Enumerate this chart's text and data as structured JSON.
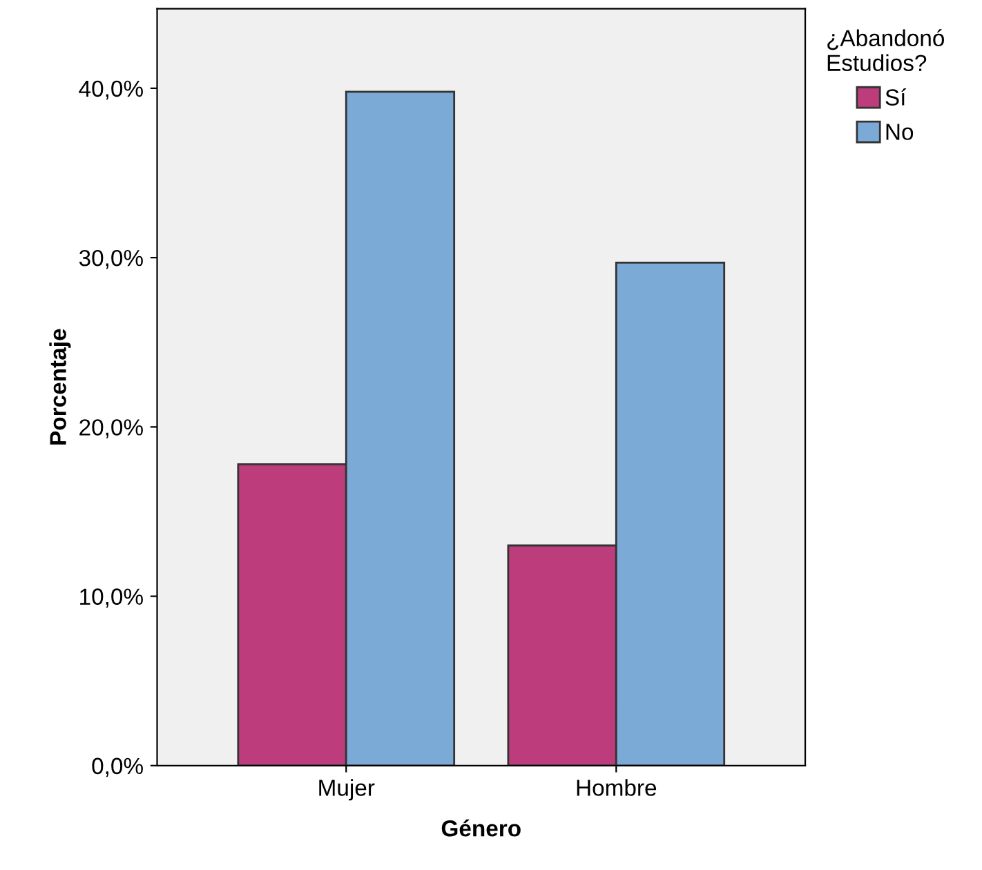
{
  "chart_data": {
    "type": "bar",
    "xlabel": "Género",
    "ylabel": "Porcentaje",
    "legend_title": "¿Abandonó\nEstudios?",
    "categories": [
      "Mujer",
      "Hombre"
    ],
    "series": [
      {
        "name": "Sí",
        "color": "#bc3c7c",
        "values": [
          17.8,
          13.0
        ]
      },
      {
        "name": "No",
        "color": "#7baad6",
        "values": [
          39.8,
          29.7
        ]
      }
    ],
    "ylim": [
      0,
      44.7
    ],
    "yticks": [
      {
        "value": 0,
        "label": "0,0%"
      },
      {
        "value": 10,
        "label": "10,0%"
      },
      {
        "value": 20,
        "label": "20,0%"
      },
      {
        "value": 30,
        "label": "30,0%"
      },
      {
        "value": 40,
        "label": "40,0%"
      }
    ],
    "grid": false,
    "legend": "top right"
  }
}
